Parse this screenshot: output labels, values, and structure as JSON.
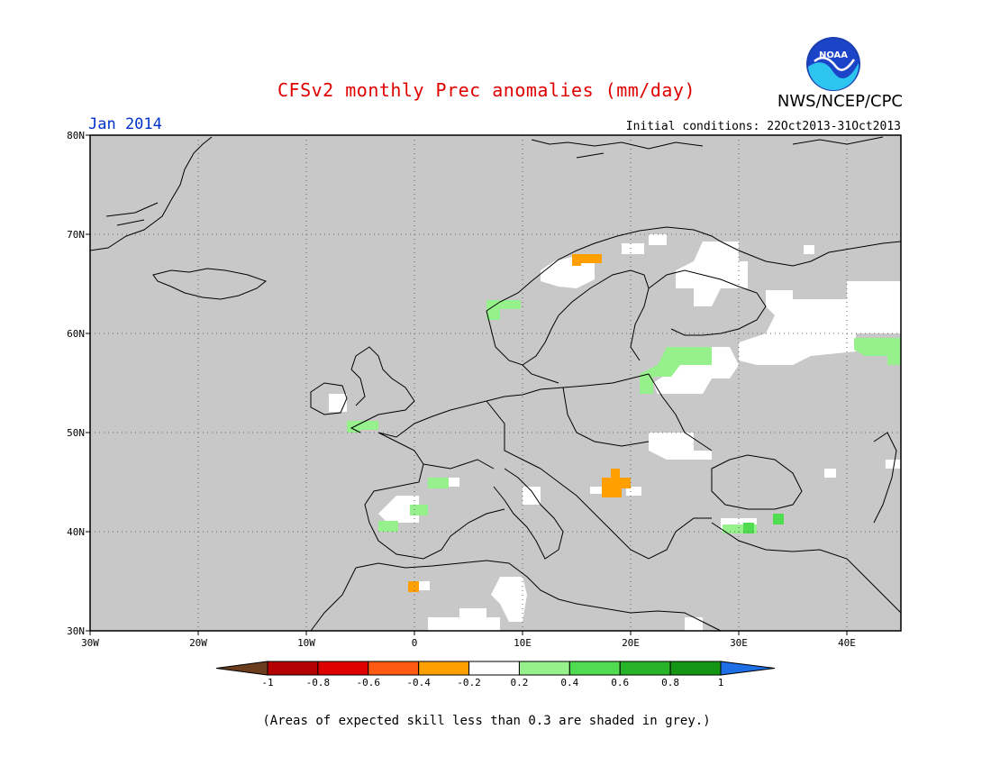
{
  "title": "CFSv2 monthly Prec anomalies (mm/day)",
  "agency": "NWS/NCEP/CPC",
  "logo_text": "NOAA",
  "target_month": "Jan 2014",
  "initial_conditions": "Initial conditions: 22Oct2013-31Oct2013",
  "footnote": "(Areas of expected skill less than 0.3 are shaded in grey.)",
  "lat_labels": [
    "80N",
    "70N",
    "60N",
    "50N",
    "40N",
    "30N"
  ],
  "lon_labels": [
    "30W",
    "20W",
    "10W",
    "0",
    "10E",
    "20E",
    "30E",
    "40E"
  ],
  "colorbar": {
    "labels": [
      "-1",
      "-0.8",
      "-0.6",
      "-0.4",
      "-0.2",
      "0.2",
      "0.4",
      "0.6",
      "0.8",
      "1"
    ],
    "colors": [
      "#6b3c1e",
      "#b40000",
      "#dc0000",
      "#ff5a14",
      "#ffa000",
      "#ffffff",
      "#96f08c",
      "#50dc50",
      "#28b428",
      "#149614",
      "#1e6ee6"
    ]
  },
  "colors": {
    "grey_mask": "#c8c8c8",
    "white": "#ffffff",
    "orange": "#ffa000",
    "light_green": "#96f08c",
    "green": "#50dc50"
  }
}
